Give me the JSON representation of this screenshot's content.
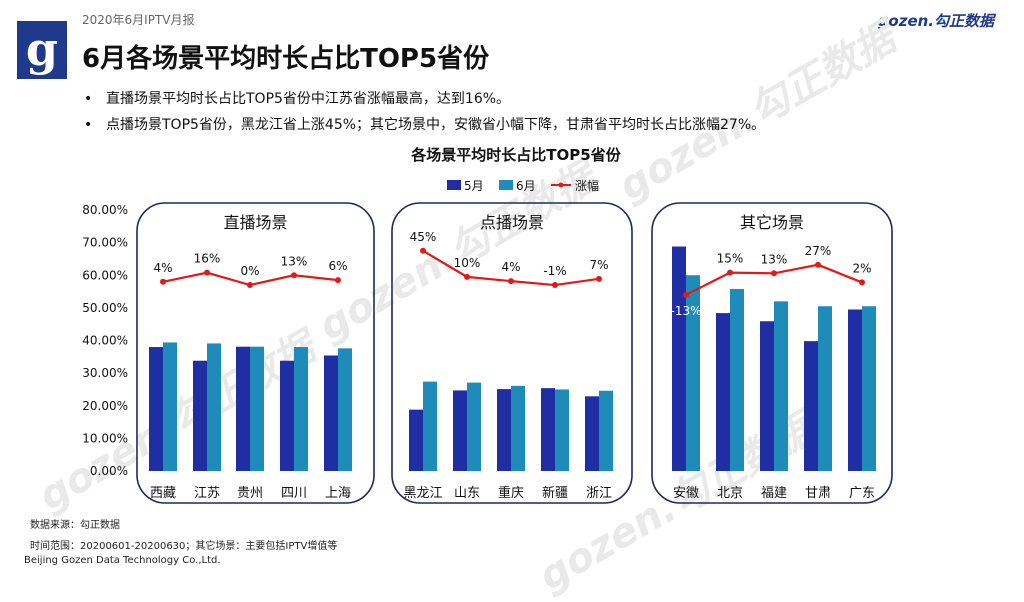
{
  "header": {
    "report_tag": "2020年6月IPTV月报",
    "title": "6月各场景平均时长占比TOP5省份",
    "brand": "gozen.勾正数据",
    "logo_letter": "g"
  },
  "bullets": [
    "直播场景平均时长占比TOP5省份中江苏省涨幅最高，达到16%。",
    "点播场景TOP5省份，黑龙江省上涨45%；其它场景中，安徽省小幅下降，甘肃省平均时长占比涨幅27%。"
  ],
  "bullet_dot": "•",
  "watermark": "gozen.勾正数据",
  "footer": {
    "source": "数据来源：勾正数据",
    "range": "时间范围：20200601-20200630；其它场景：主要包括IPTV增值等",
    "company": "Beijing Gozen Data Technology Co.,Ltd."
  },
  "colors": {
    "may": "#1f2fa3",
    "june": "#1e8bb8",
    "growth": "#e01a1a",
    "panel_border": "#1a2a5e"
  },
  "chart_data": {
    "type": "bar",
    "title": "各场景平均时长占比TOP5省份",
    "legend": [
      "5月",
      "6月",
      "涨幅"
    ],
    "legend_position": "top-center",
    "ylim": [
      0,
      80
    ],
    "yticks": [
      "0.00%",
      "10.00%",
      "20.00%",
      "30.00%",
      "40.00%",
      "50.00%",
      "60.00%",
      "70.00%",
      "80.00%"
    ],
    "panels": [
      {
        "name": "直播场景",
        "categories": [
          "西藏",
          "江苏",
          "贵州",
          "四川",
          "上海"
        ],
        "series": [
          {
            "name": "5月",
            "values": [
              38,
              33.8,
              38.1,
              33.8,
              35.4
            ]
          },
          {
            "name": "6月",
            "values": [
              39.4,
              39.1,
              38.1,
              38,
              37.6
            ]
          }
        ],
        "growth_labels": [
          "4%",
          "16%",
          "0%",
          "13%",
          "6%"
        ],
        "growth_line_level": [
          58,
          60.8,
          57,
          60,
          58.5
        ]
      },
      {
        "name": "点播场景",
        "categories": [
          "黑龙江",
          "山东",
          "重庆",
          "新疆",
          "浙江"
        ],
        "series": [
          {
            "name": "5月",
            "values": [
              18.8,
              24.7,
              25.1,
              25.4,
              22.9
            ]
          },
          {
            "name": "6月",
            "values": [
              27.4,
              27.1,
              26.1,
              25,
              24.6
            ]
          }
        ],
        "growth_labels": [
          "45%",
          "10%",
          "4%",
          "-1%",
          "7%"
        ],
        "growth_line_level": [
          67.5,
          59.5,
          58.2,
          57,
          58.9
        ]
      },
      {
        "name": "其它场景",
        "categories": [
          "安徽",
          "北京",
          "福建",
          "甘肃",
          "广东"
        ],
        "series": [
          {
            "name": "5月",
            "values": [
              68.8,
              48.4,
              45.9,
              39.8,
              49.5
            ]
          },
          {
            "name": "6月",
            "values": [
              60,
              55.8,
              52,
              50.5,
              50.5
            ]
          }
        ],
        "growth_labels": [
          "-13%",
          "15%",
          "13%",
          "27%",
          "2%"
        ],
        "growth_line_level": [
          54,
          60.8,
          60.6,
          63.2,
          57.8
        ]
      }
    ]
  }
}
